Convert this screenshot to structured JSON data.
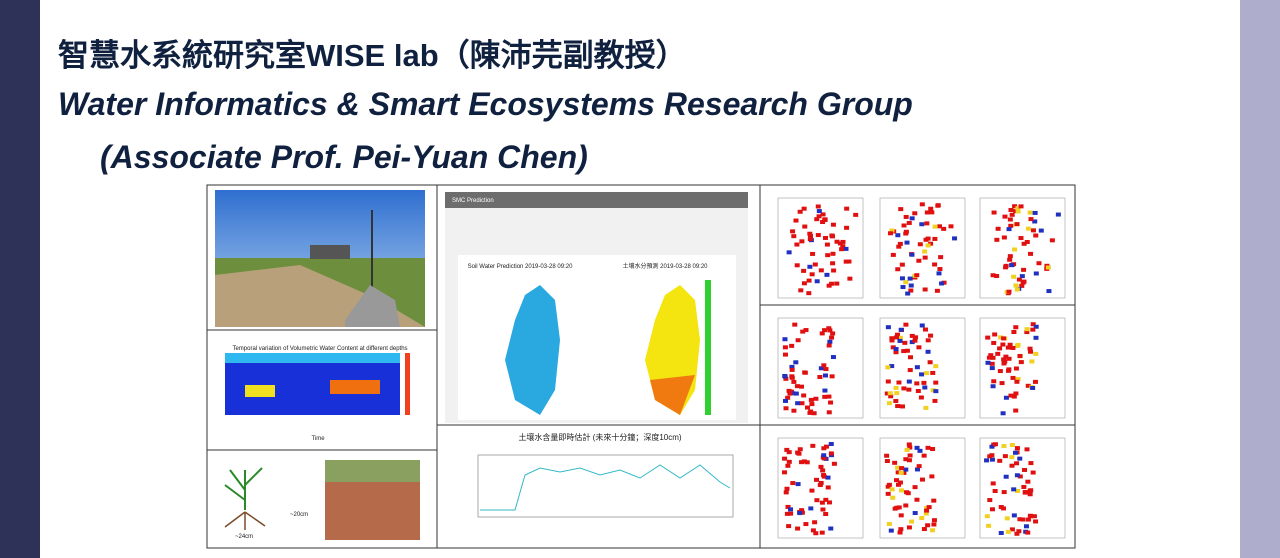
{
  "header": {
    "title_zh": "智慧水系統研究室WISE lab（陳沛芫副教授）",
    "title_en_line1": "Water Informatics & Smart Ecosystems Research Group",
    "title_en_line2": "(Associate Prof. Pei-Yuan Chen)"
  },
  "figures": {
    "vwc_chart_title": "Temporal variation of Volumetric Water Content at different depths",
    "vwc_x_label": "Time",
    "plant_root_depth": "~20cm",
    "plant_root_width": "~24cm",
    "smc_panel_title": "SMC Prediction",
    "map_left_title": "Soil Water Prediction 2019-03-28 09:20",
    "map_right_title": "土壤水分預測 2019-03-28 09:20",
    "realtime_title": "土壤水含量即時估計 (未來十分鐘；深度10cm)"
  }
}
